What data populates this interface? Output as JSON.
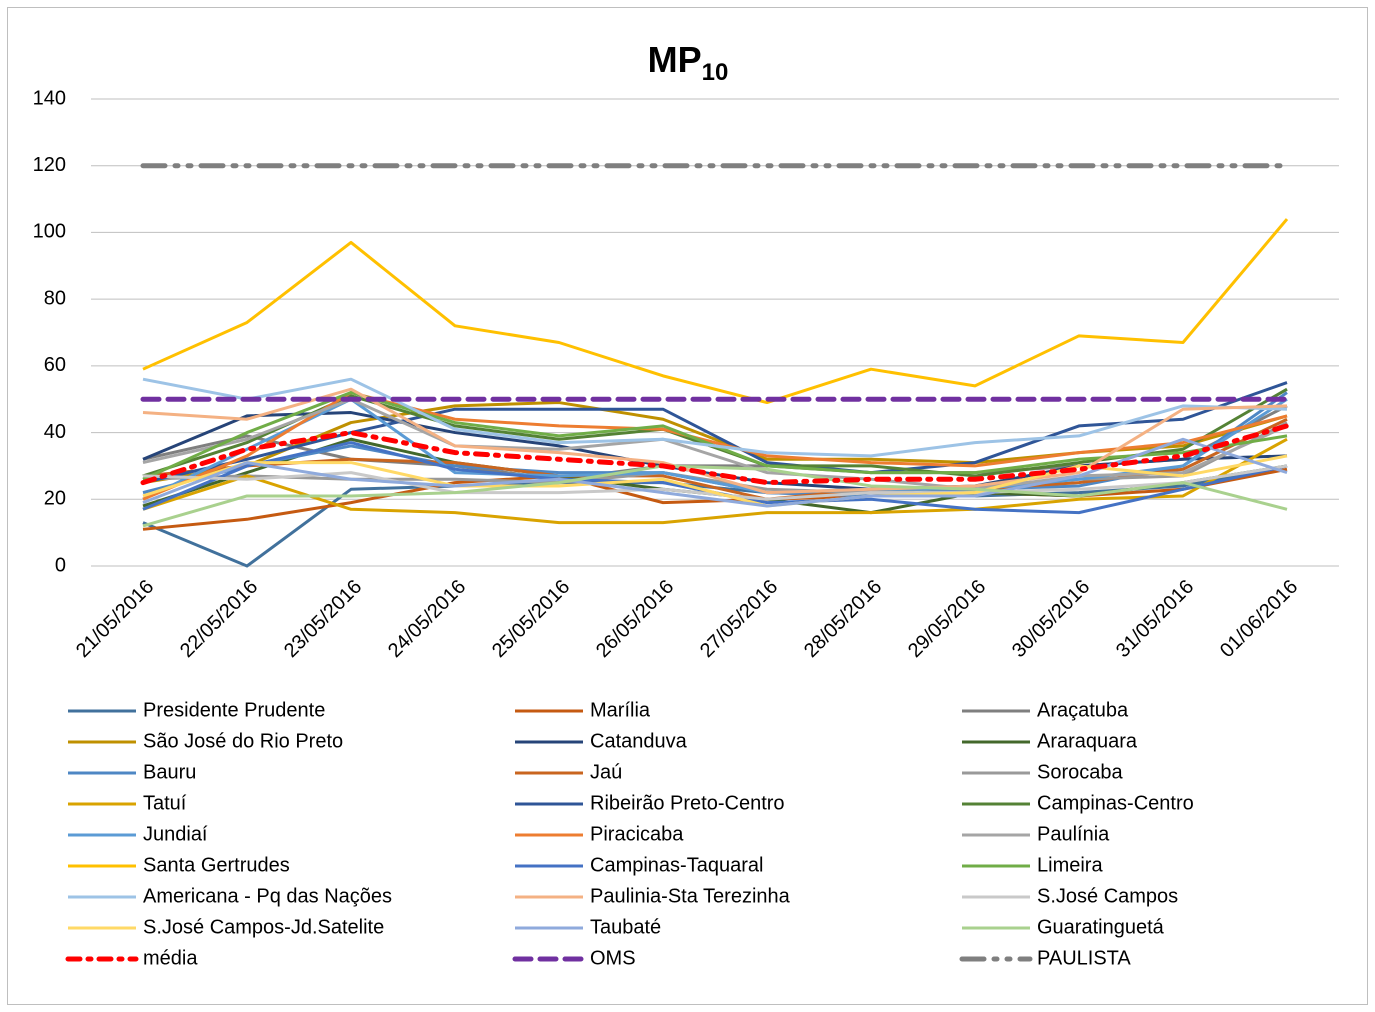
{
  "chart_data": {
    "type": "line",
    "title": "MP",
    "title_subscript": "10",
    "categories": [
      "21/05/2016",
      "22/05/2016",
      "23/05/2016",
      "24/05/2016",
      "25/05/2016",
      "26/05/2016",
      "27/05/2016",
      "28/05/2016",
      "29/05/2016",
      "30/05/2016",
      "31/05/2016",
      "01/06/2016"
    ],
    "ylim": [
      0,
      140
    ],
    "yticks": [
      0,
      20,
      40,
      60,
      80,
      100,
      120,
      140
    ],
    "grid": true,
    "legend": "bottom",
    "series": [
      {
        "name": "Presidente Prudente",
        "color": "#41719c",
        "values": [
          13,
          0,
          23,
          24,
          25,
          25,
          22,
          21,
          21,
          22,
          24,
          30
        ]
      },
      {
        "name": "Marília",
        "color": "#c55a11",
        "values": [
          11,
          14,
          19,
          25,
          27,
          19,
          20,
          21,
          22,
          21,
          23,
          29
        ]
      },
      {
        "name": "Araçatuba",
        "color": "#7f7f7f",
        "values": [
          32,
          39,
          32,
          30,
          26,
          30,
          30,
          28,
          28,
          30,
          32,
          48
        ]
      },
      {
        "name": "São José do Rio Preto",
        "color": "#bf9000",
        "values": [
          25,
          30,
          43,
          48,
          49,
          44,
          32,
          32,
          31,
          34,
          36,
          45
        ]
      },
      {
        "name": "Catanduva",
        "color": "#264478",
        "values": [
          32,
          45,
          46,
          40,
          36,
          30,
          25,
          23,
          24,
          30,
          32,
          33
        ]
      },
      {
        "name": "Araraquara",
        "color": "#43682b",
        "values": [
          18,
          28,
          38,
          31,
          27,
          23,
          20,
          16,
          22,
          21,
          25,
          30
        ]
      },
      {
        "name": "Bauru",
        "color": "#4e87c4",
        "values": [
          22,
          30,
          36,
          30,
          28,
          28,
          22,
          21,
          23,
          24,
          30,
          52
        ]
      },
      {
        "name": "Jaú",
        "color": "#c9651f",
        "values": [
          27,
          30,
          32,
          31,
          27,
          27,
          20,
          23,
          23,
          25,
          29,
          44
        ]
      },
      {
        "name": "Sorocaba",
        "color": "#999999",
        "values": [
          26,
          27,
          26,
          26,
          25,
          28,
          23,
          22,
          24,
          26,
          27,
          43
        ]
      },
      {
        "name": "Tatuí",
        "color": "#d9a300",
        "values": [
          17,
          27,
          17,
          16,
          13,
          13,
          16,
          16,
          17,
          20,
          21,
          38
        ]
      },
      {
        "name": "Ribeirão Preto-Centro",
        "color": "#2f5597",
        "values": [
          25,
          32,
          40,
          47,
          47,
          47,
          31,
          28,
          31,
          42,
          44,
          55
        ]
      },
      {
        "name": "Campinas-Centro",
        "color": "#548235",
        "values": [
          27,
          37,
          51,
          42,
          38,
          41,
          30,
          30,
          27,
          31,
          35,
          53
        ]
      },
      {
        "name": "Jundiaí",
        "color": "#5b9bd5",
        "values": [
          20,
          35,
          50,
          28,
          27,
          28,
          22,
          23,
          23,
          26,
          30,
          50
        ]
      },
      {
        "name": "Piracicaba",
        "color": "#ed7d31",
        "values": [
          20,
          33,
          52,
          44,
          42,
          41,
          33,
          31,
          30,
          34,
          37,
          45
        ]
      },
      {
        "name": "Paulínia",
        "color": "#a5a5a5",
        "values": [
          31,
          38,
          50,
          36,
          35,
          38,
          28,
          26,
          23,
          27,
          28,
          42
        ]
      },
      {
        "name": "Santa Gertrudes",
        "color": "#ffc000",
        "values": [
          59,
          73,
          97,
          72,
          67,
          57,
          49,
          59,
          54,
          69,
          67,
          104
        ]
      },
      {
        "name": "Campinas-Taquaral",
        "color": "#4472c4",
        "values": [
          17,
          30,
          37,
          29,
          26,
          25,
          19,
          20,
          17,
          16,
          23,
          30
        ]
      },
      {
        "name": "Limeira",
        "color": "#70ad47",
        "values": [
          26,
          40,
          52,
          43,
          39,
          42,
          30,
          28,
          28,
          32,
          34,
          39
        ]
      },
      {
        "name": "Americana - Pq das Nações",
        "color": "#9dc3e6",
        "values": [
          56,
          50,
          56,
          41,
          37,
          38,
          34,
          33,
          37,
          39,
          48,
          47
        ]
      },
      {
        "name": "Paulinia-Sta Terezinha",
        "color": "#f4b183",
        "values": [
          46,
          44,
          53,
          36,
          34,
          31,
          22,
          23,
          24,
          28,
          47,
          48
        ]
      },
      {
        "name": "S.José Campos",
        "color": "#c9c9c9",
        "values": [
          27,
          26,
          28,
          22,
          22,
          23,
          20,
          22,
          22,
          23,
          25,
          30
        ]
      },
      {
        "name": "S.José Campos-Jd.Satelite",
        "color": "#ffd966",
        "values": [
          21,
          31,
          31,
          24,
          24,
          26,
          18,
          21,
          22,
          30,
          27,
          33
        ]
      },
      {
        "name": "Taubaté",
        "color": "#8faadc",
        "values": [
          19,
          31,
          26,
          24,
          26,
          22,
          18,
          21,
          21,
          27,
          38,
          28
        ]
      },
      {
        "name": "Guaratinguetá",
        "color": "#a9d18e",
        "values": [
          12,
          21,
          21,
          22,
          25,
          30,
          29,
          24,
          23,
          21,
          25,
          17
        ]
      },
      {
        "name": "média",
        "color": "#ff0000",
        "dash": "dash-dot",
        "values": [
          25,
          35,
          40,
          34,
          32,
          30,
          25,
          26,
          26,
          29,
          33,
          42
        ]
      },
      {
        "name": "OMS",
        "color": "#7030a0",
        "dash": "dash",
        "values": [
          50,
          50,
          50,
          50,
          50,
          50,
          50,
          50,
          50,
          50,
          50,
          50
        ]
      },
      {
        "name": "PAULISTA",
        "color": "#7f7f7f",
        "dash": "long-dash-dot-dot",
        "values": [
          120,
          120,
          120,
          120,
          120,
          120,
          120,
          120,
          120,
          120,
          120,
          120
        ]
      }
    ]
  }
}
